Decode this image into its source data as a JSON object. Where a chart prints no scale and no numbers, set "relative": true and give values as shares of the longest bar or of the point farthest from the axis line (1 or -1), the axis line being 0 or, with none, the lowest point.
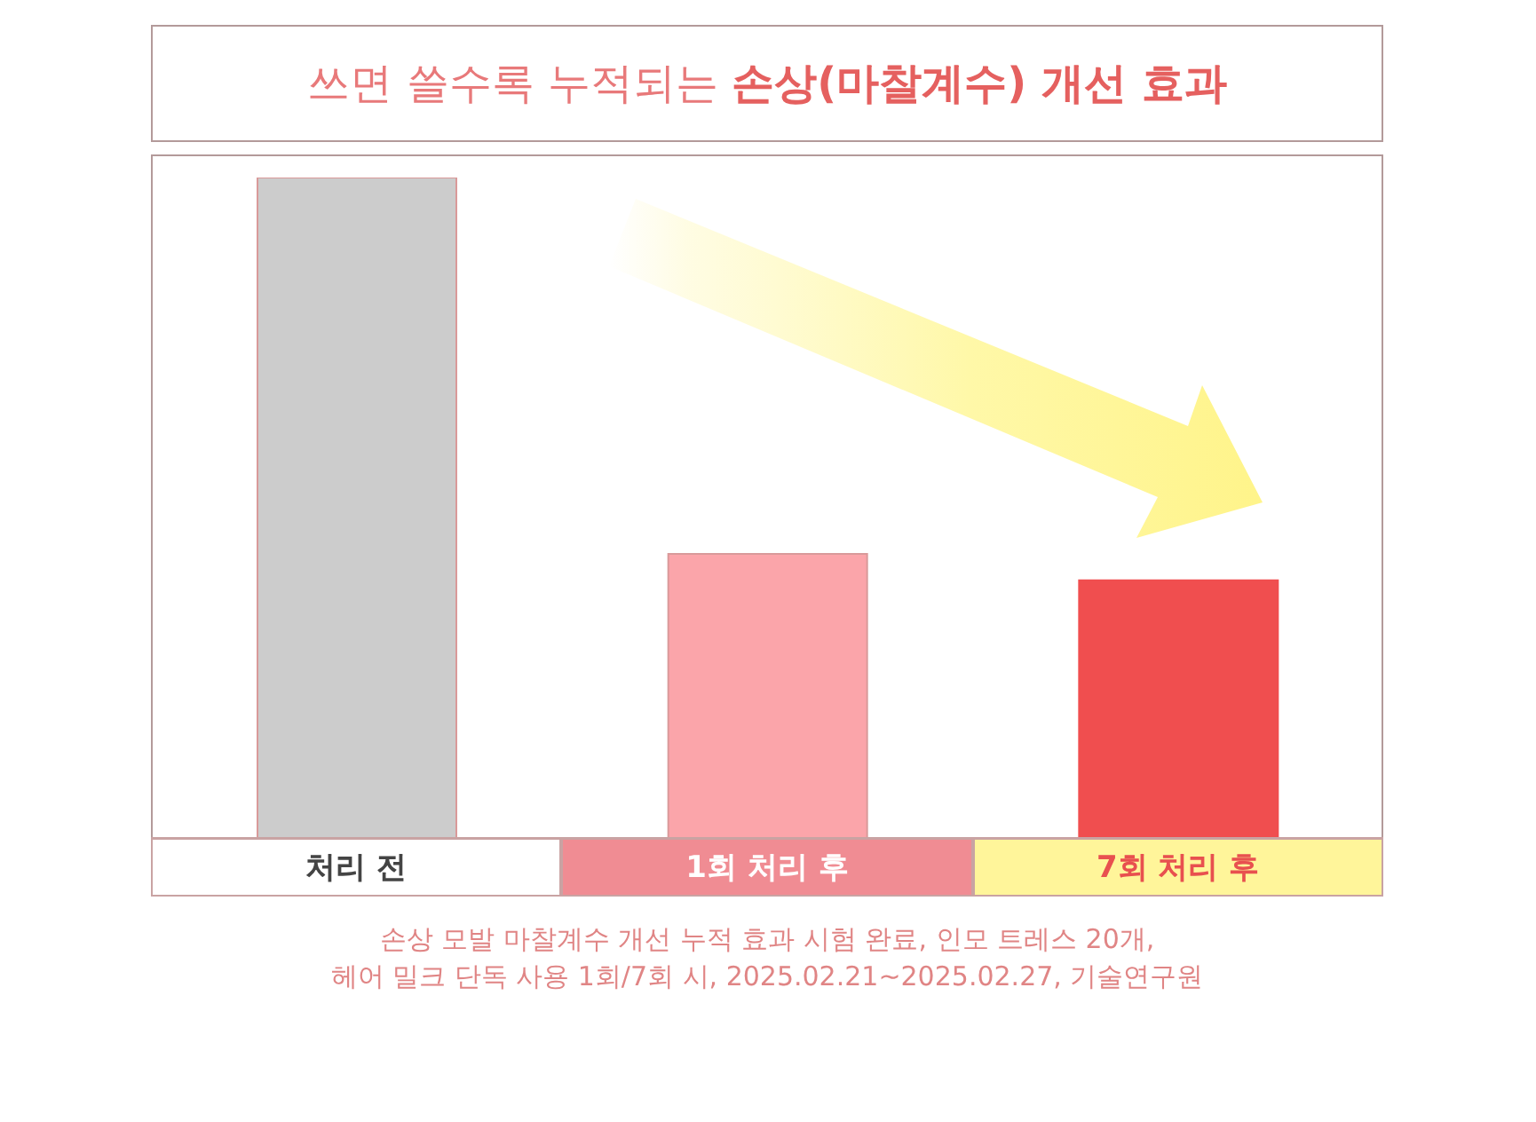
{
  "chart_data": {
    "type": "bar",
    "title": "쓰면 쓸수록 누적되는 손상(마찰계수) 개선 효과",
    "categories": [
      "처리 전",
      "1회 처리 후",
      "7회 처리 후"
    ],
    "values": [
      1,
      0.43,
      0.39
    ],
    "colors": [
      "#cccccc",
      "#fba5aa",
      "#f04e4f"
    ],
    "relative": true,
    "annotations": [
      "손상 모발 마찰계수 개선 누적 효과 시험 완료, 인모 트레스 20개,",
      "헤어 밀크 단독 사용 1회/7회 시, 2025.02.21~2025.02.27, 기술연구원"
    ]
  }
}
